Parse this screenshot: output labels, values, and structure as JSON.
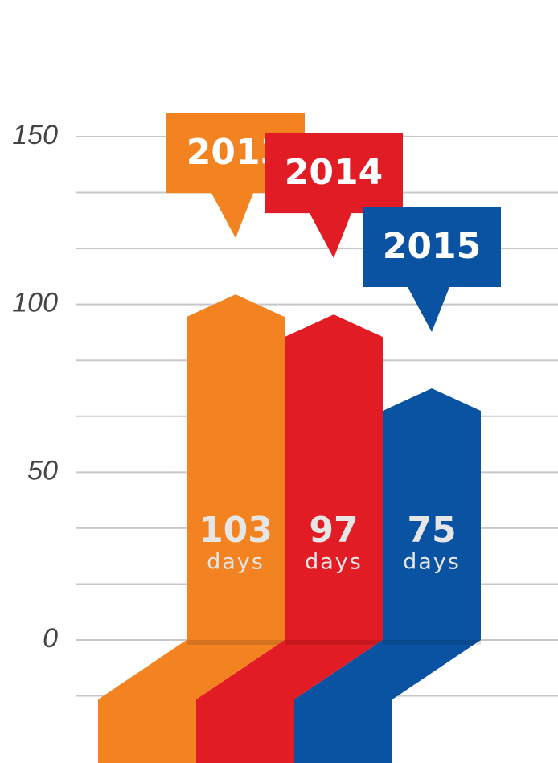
{
  "chart_data": {
    "type": "bar",
    "categories": [
      "2013",
      "2014",
      "2015"
    ],
    "values": [
      103,
      97,
      75
    ],
    "colors": [
      "#f38221",
      "#e21c24",
      "#0a52a2"
    ],
    "unit": "days",
    "ylim": [
      0,
      150
    ],
    "yticks": [
      0,
      50,
      100,
      150
    ],
    "grid": true
  }
}
